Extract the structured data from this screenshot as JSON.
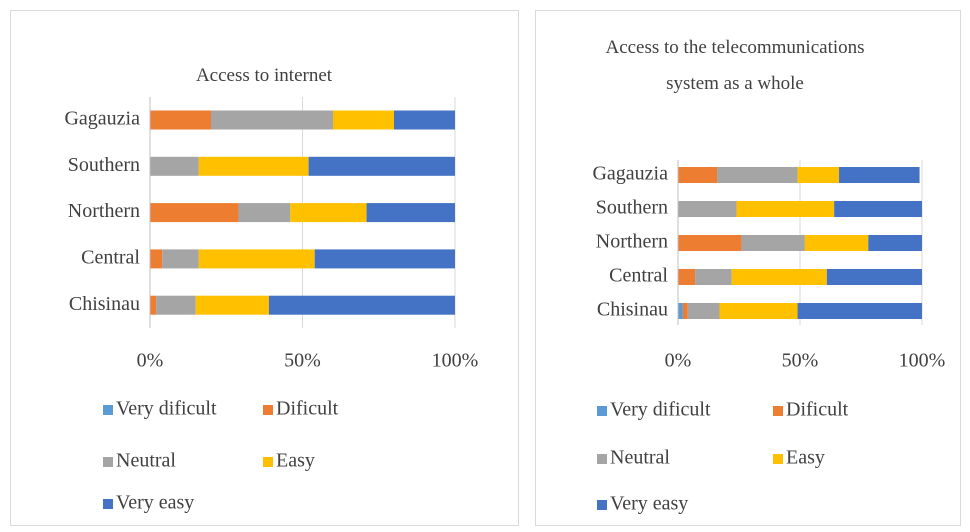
{
  "chart_data": [
    {
      "type": "bar",
      "orientation": "horizontal",
      "stacked": true,
      "title": "Access to internet",
      "categories": [
        "Gagauzia",
        "Southern",
        "Northern",
        "Central",
        "Chisinau"
      ],
      "series": [
        {
          "name": "Very dificult",
          "color": "#5b9bd5",
          "values": [
            0,
            0,
            0,
            0,
            0
          ]
        },
        {
          "name": "Dificult",
          "color": "#ed7d31",
          "values": [
            20,
            0,
            29,
            4,
            2
          ]
        },
        {
          "name": "Neutral",
          "color": "#a5a5a5",
          "values": [
            40,
            16,
            17,
            12,
            13
          ]
        },
        {
          "name": "Easy",
          "color": "#ffc000",
          "values": [
            20,
            36,
            25,
            38,
            24
          ]
        },
        {
          "name": "Very easy",
          "color": "#4472c4",
          "values": [
            20,
            48,
            29,
            46,
            61
          ]
        }
      ],
      "xlim": [
        0,
        100
      ],
      "xticks": [
        {
          "value": 0,
          "label": "0%"
        },
        {
          "value": 50,
          "label": "50%"
        },
        {
          "value": 100,
          "label": "100%"
        }
      ],
      "grid": true
    },
    {
      "type": "bar",
      "orientation": "horizontal",
      "stacked": true,
      "title": "Access to the telecommunications system as a whole",
      "categories": [
        "Gagauzia",
        "Southern",
        "Northern",
        "Central",
        "Chisinau"
      ],
      "series": [
        {
          "name": "Very dificult",
          "color": "#5b9bd5",
          "values": [
            0,
            0,
            0,
            0,
            2
          ]
        },
        {
          "name": "Dificult",
          "color": "#ed7d31",
          "values": [
            16,
            0,
            26,
            7,
            2
          ]
        },
        {
          "name": "Neutral",
          "color": "#a5a5a5",
          "values": [
            33,
            24,
            26,
            15,
            13
          ]
        },
        {
          "name": "Easy",
          "color": "#ffc000",
          "values": [
            17,
            40,
            26,
            39,
            32
          ]
        },
        {
          "name": "Very easy",
          "color": "#4472c4",
          "values": [
            33,
            36,
            22,
            39,
            51
          ]
        }
      ],
      "xlim": [
        0,
        100
      ],
      "xticks": [
        {
          "value": 0,
          "label": "0%"
        },
        {
          "value": 50,
          "label": "50%"
        },
        {
          "value": 100,
          "label": "100%"
        }
      ],
      "grid": true
    }
  ]
}
